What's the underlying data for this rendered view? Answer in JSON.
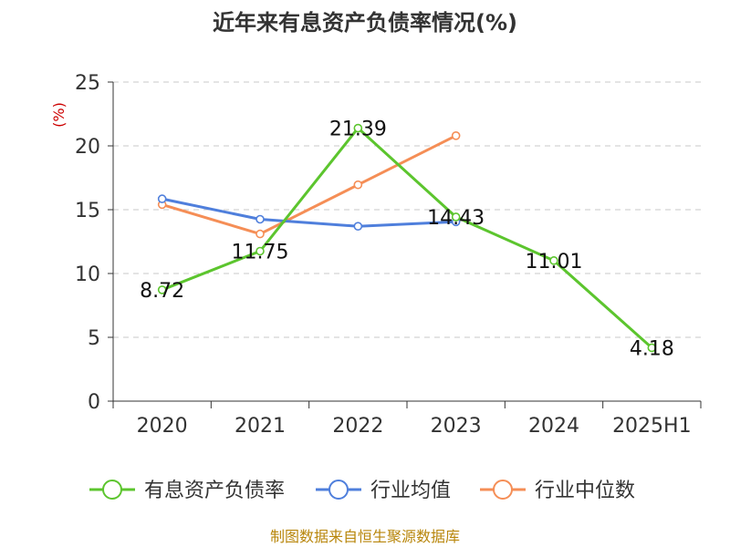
{
  "chart_data": {
    "type": "line",
    "title": "近年来有息资产负债率情况(%)",
    "ylabel": "(%)",
    "xlabel": "",
    "categories": [
      "2020",
      "2021",
      "2022",
      "2023",
      "2024",
      "2025H1"
    ],
    "ylim": [
      0,
      25
    ],
    "yticks": [
      0,
      5,
      10,
      15,
      20,
      25
    ],
    "grid": true,
    "legend_position": "bottom",
    "series": [
      {
        "name": "有息资产负债率",
        "color": "#5cc52e",
        "values": [
          8.72,
          11.75,
          21.39,
          14.43,
          11.01,
          4.18
        ],
        "labels": [
          "8.72",
          "11.75",
          "21.39",
          "14.43",
          "11.01",
          "4.18"
        ]
      },
      {
        "name": "行业均值",
        "color": "#4f7fdc",
        "values": [
          15.85,
          14.25,
          13.7,
          14.05,
          null,
          null
        ]
      },
      {
        "name": "行业中位数",
        "color": "#f58e56",
        "values": [
          15.4,
          13.1,
          16.95,
          20.8,
          null,
          null
        ]
      }
    ]
  },
  "source": "制图数据来自恒生聚源数据库"
}
